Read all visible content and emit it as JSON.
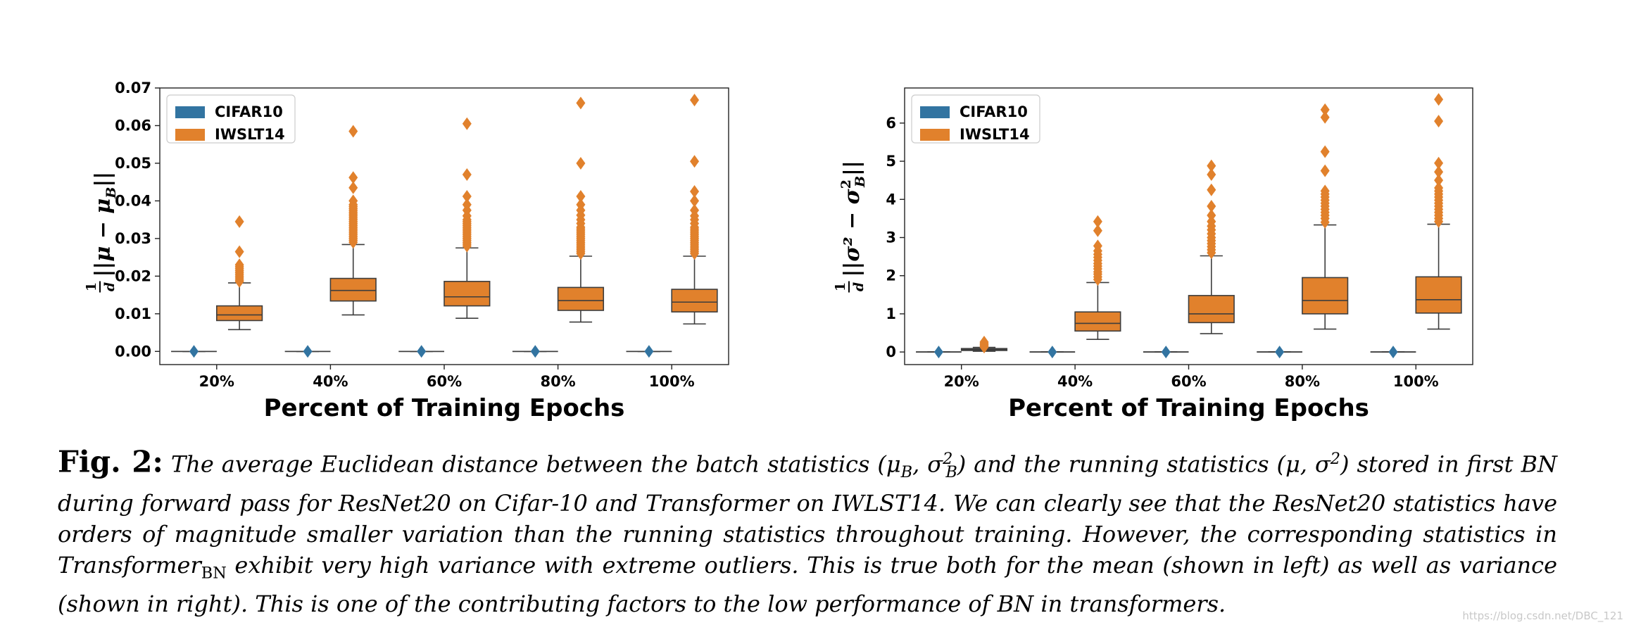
{
  "chart_data": [
    {
      "type": "box",
      "title": "",
      "xlabel": "Percent of Training Epochs",
      "ylabel": "(1/d)||μ − μ_B||",
      "ylabel_parts": {
        "frac_num": "1",
        "frac_den": "d",
        "expr": "||μ − μ",
        "sub": "B",
        "end": "||"
      },
      "categories": [
        "20%",
        "40%",
        "60%",
        "80%",
        "100%"
      ],
      "yticks": [
        0.0,
        0.01,
        0.02,
        0.03,
        0.04,
        0.05,
        0.06,
        0.07
      ],
      "ytick_labels": [
        "0.00",
        "0.01",
        "0.02",
        "0.03",
        "0.04",
        "0.05",
        "0.06",
        "0.07"
      ],
      "ylim": [
        -0.0035,
        0.07
      ],
      "legend": {
        "position": "upper-left",
        "entries": [
          "CIFAR10",
          "IWSLT14"
        ]
      },
      "series": [
        {
          "name": "CIFAR10",
          "color": "#3274a1",
          "boxes": [
            {
              "q1": 0.0,
              "median": 0.0,
              "q3": 0.0,
              "whislo": 0.0,
              "whishi": 0.0,
              "fliers": [
                0.0
              ]
            },
            {
              "q1": 0.0,
              "median": 0.0,
              "q3": 0.0,
              "whislo": 0.0,
              "whishi": 0.0,
              "fliers": [
                0.0
              ]
            },
            {
              "q1": 0.0,
              "median": 0.0,
              "q3": 0.0,
              "whislo": 0.0,
              "whishi": 0.0,
              "fliers": [
                0.0
              ]
            },
            {
              "q1": 0.0,
              "median": 0.0,
              "q3": 0.0,
              "whislo": 0.0,
              "whishi": 0.0,
              "fliers": [
                0.0
              ]
            },
            {
              "q1": 0.0,
              "median": 0.0,
              "q3": 0.0,
              "whislo": 0.0,
              "whishi": 0.0,
              "fliers": [
                0.0
              ]
            }
          ]
        },
        {
          "name": "IWSLT14",
          "color": "#e1812c",
          "boxes": [
            {
              "q1": 0.0082,
              "median": 0.0097,
              "q3": 0.0121,
              "whislo": 0.0058,
              "whishi": 0.0182,
              "fliers": [
                0.0186,
                0.019,
                0.0195,
                0.02,
                0.0205,
                0.021,
                0.0215,
                0.022,
                0.0225,
                0.023,
                0.0265,
                0.0345
              ]
            },
            {
              "q1": 0.0134,
              "median": 0.0162,
              "q3": 0.0194,
              "whislo": 0.0097,
              "whishi": 0.0284,
              "fliers": [
                0.029,
                0.0295,
                0.03,
                0.0305,
                0.031,
                0.0315,
                0.032,
                0.0325,
                0.033,
                0.0335,
                0.034,
                0.0345,
                0.035,
                0.0355,
                0.036,
                0.0365,
                0.037,
                0.0375,
                0.038,
                0.0385,
                0.039,
                0.04,
                0.0435,
                0.0462,
                0.0585
              ]
            },
            {
              "q1": 0.0121,
              "median": 0.0145,
              "q3": 0.0186,
              "whislo": 0.0088,
              "whishi": 0.0275,
              "fliers": [
                0.028,
                0.0285,
                0.029,
                0.0295,
                0.03,
                0.0305,
                0.031,
                0.0315,
                0.032,
                0.0325,
                0.033,
                0.0335,
                0.034,
                0.0345,
                0.035,
                0.036,
                0.0375,
                0.039,
                0.0412,
                0.047,
                0.0605
              ]
            },
            {
              "q1": 0.0109,
              "median": 0.0135,
              "q3": 0.017,
              "whislo": 0.0078,
              "whishi": 0.0253,
              "fliers": [
                0.026,
                0.0265,
                0.027,
                0.0275,
                0.028,
                0.0285,
                0.029,
                0.0295,
                0.03,
                0.0305,
                0.031,
                0.0315,
                0.032,
                0.0325,
                0.033,
                0.034,
                0.035,
                0.0362,
                0.0375,
                0.039,
                0.0412,
                0.05,
                0.066
              ]
            },
            {
              "q1": 0.0105,
              "median": 0.0131,
              "q3": 0.0165,
              "whislo": 0.0073,
              "whishi": 0.0253,
              "fliers": [
                0.026,
                0.0265,
                0.027,
                0.0275,
                0.028,
                0.0285,
                0.029,
                0.0295,
                0.03,
                0.0305,
                0.031,
                0.0315,
                0.032,
                0.0325,
                0.033,
                0.034,
                0.035,
                0.036,
                0.0375,
                0.04,
                0.0425,
                0.0505,
                0.0668
              ]
            }
          ]
        }
      ]
    },
    {
      "type": "box",
      "title": "",
      "xlabel": "Percent of Training Epochs",
      "ylabel": "(1/d)||σ² − σ_B²||",
      "ylabel_parts": {
        "frac_num": "1",
        "frac_den": "d",
        "expr": "||σ² − σ",
        "sub": "B",
        "sup": "2",
        "end": "||"
      },
      "categories": [
        "20%",
        "40%",
        "60%",
        "80%",
        "100%"
      ],
      "yticks": [
        0,
        1,
        2,
        3,
        4,
        5,
        6
      ],
      "ytick_labels": [
        "0",
        "1",
        "2",
        "3",
        "4",
        "5",
        "6"
      ],
      "ylim": [
        -0.33,
        6.92
      ],
      "legend": {
        "position": "upper-left",
        "entries": [
          "CIFAR10",
          "IWSLT14"
        ]
      },
      "series": [
        {
          "name": "CIFAR10",
          "color": "#3274a1",
          "boxes": [
            {
              "q1": 0.0,
              "median": 0.0,
              "q3": 0.0,
              "whislo": 0.0,
              "whishi": 0.0,
              "fliers": [
                0.0
              ]
            },
            {
              "q1": 0.0,
              "median": 0.0,
              "q3": 0.0,
              "whislo": 0.0,
              "whishi": 0.0,
              "fliers": [
                0.0
              ]
            },
            {
              "q1": 0.0,
              "median": 0.0,
              "q3": 0.0,
              "whislo": 0.0,
              "whishi": 0.0,
              "fliers": [
                0.0
              ]
            },
            {
              "q1": 0.0,
              "median": 0.0,
              "q3": 0.0,
              "whislo": 0.0,
              "whishi": 0.0,
              "fliers": [
                0.0
              ]
            },
            {
              "q1": 0.0,
              "median": 0.0,
              "q3": 0.0,
              "whislo": 0.0,
              "whishi": 0.0,
              "fliers": [
                0.0
              ]
            }
          ]
        },
        {
          "name": "IWSLT14",
          "color": "#e1812c",
          "boxes": [
            {
              "q1": 0.04,
              "median": 0.06,
              "q3": 0.09,
              "whislo": 0.02,
              "whishi": 0.12,
              "fliers": [
                0.13,
                0.16,
                0.19,
                0.22,
                0.26
              ]
            },
            {
              "q1": 0.55,
              "median": 0.75,
              "q3": 1.05,
              "whislo": 0.33,
              "whishi": 1.82,
              "fliers": [
                1.9,
                1.97,
                2.04,
                2.1,
                2.18,
                2.25,
                2.32,
                2.4,
                2.48,
                2.56,
                2.65,
                2.78,
                3.18,
                3.42
              ]
            },
            {
              "q1": 0.77,
              "median": 1.0,
              "q3": 1.48,
              "whislo": 0.48,
              "whishi": 2.52,
              "fliers": [
                2.6,
                2.68,
                2.76,
                2.84,
                2.92,
                3.0,
                3.1,
                3.2,
                3.3,
                3.42,
                3.58,
                3.82,
                4.25,
                4.65,
                4.88
              ]
            },
            {
              "q1": 1.0,
              "median": 1.35,
              "q3": 1.95,
              "whislo": 0.6,
              "whishi": 3.33,
              "fliers": [
                3.4,
                3.5,
                3.58,
                3.66,
                3.74,
                3.82,
                3.9,
                3.98,
                4.06,
                4.14,
                4.22,
                4.75,
                5.25,
                6.15,
                6.35
              ]
            },
            {
              "q1": 1.02,
              "median": 1.37,
              "q3": 1.97,
              "whislo": 0.6,
              "whishi": 3.35,
              "fliers": [
                3.42,
                3.5,
                3.58,
                3.66,
                3.74,
                3.82,
                3.9,
                3.98,
                4.06,
                4.14,
                4.22,
                4.3,
                4.5,
                4.72,
                4.95,
                6.05,
                6.62
              ]
            }
          ]
        }
      ]
    }
  ],
  "caption": {
    "label": "Fig. 2:",
    "seg1": "The average Euclidean distance between the batch statistics (μ",
    "sub_b1": "B",
    "seg2": ", σ",
    "sup1": "2",
    "sub_b2": "B",
    "seg3": ") and the running statistics (μ, σ",
    "sup2": "2",
    "seg4": ") stored in first BN during forward pass for ResNet20 on Cifar-10 and Transformer on IWLST14. We can clearly see that the ResNet20 statistics have orders of magnitude smaller variation than the running statistics throughout training. However, the corresponding statistics in Transformer",
    "sub_bn": "BN",
    "seg5": " exhibit very high variance with extreme outliers. This is true both for the mean (shown in left) as well as variance (shown in right). This is one of the contributing factors to the low performance of BN in transformers."
  },
  "watermark": "https://blog.csdn.net/DBC_121"
}
